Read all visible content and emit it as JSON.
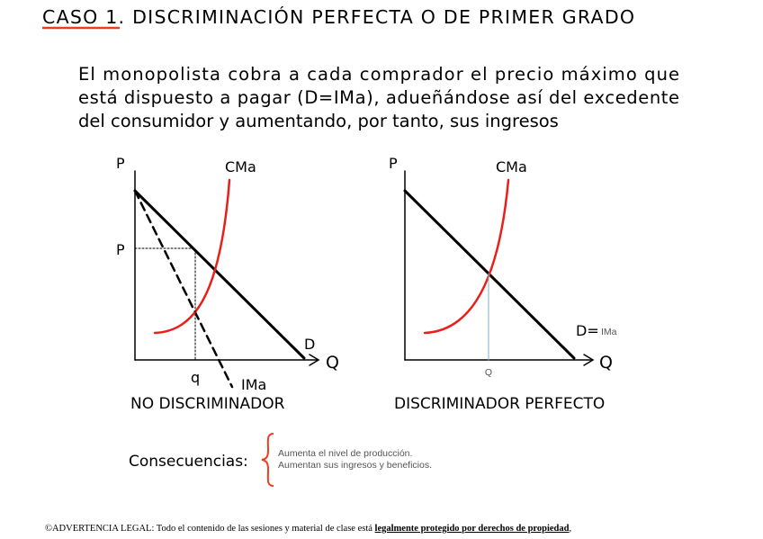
{
  "header": {
    "title": "CASO 1. DISCRIMINACIÓN PERFECTA O DE PRIMER GRADO"
  },
  "intro": {
    "lines": [
      "El monopolista cobra a cada comprador el precio máximo que",
      "está dispuesto a pagar (D=IMa), adueñándose así del excedente",
      "del consumidor y aumentando, por tanto, sus ingresos"
    ]
  },
  "left_diagram": {
    "y_axis": "P",
    "x_axis": "Q",
    "cost_curve": "CMa",
    "price_label": "P",
    "demand": "D",
    "quantity_label": "q",
    "marginal_revenue": "IMa",
    "caption": "NO DISCRIMINADOR"
  },
  "right_diagram": {
    "y_axis": "P",
    "x_axis": "Q",
    "cost_curve": "CMa",
    "demand": "D=",
    "demand_note": "IMa",
    "quantity_label": "Q",
    "caption": "DISCRIMINADOR PERFECTO"
  },
  "consequences": {
    "label": "Consecuencias:",
    "items": [
      "Aumenta el nivel de producción.",
      "Aumentan sus ingresos y beneficios."
    ]
  },
  "footer": {
    "text": "©ADVERTENCIA LEGAL: Todo el contenido de las sesiones y material de clase está ",
    "emphasis": "legalmente protegido por derechos de propiedad",
    "end": ","
  }
}
